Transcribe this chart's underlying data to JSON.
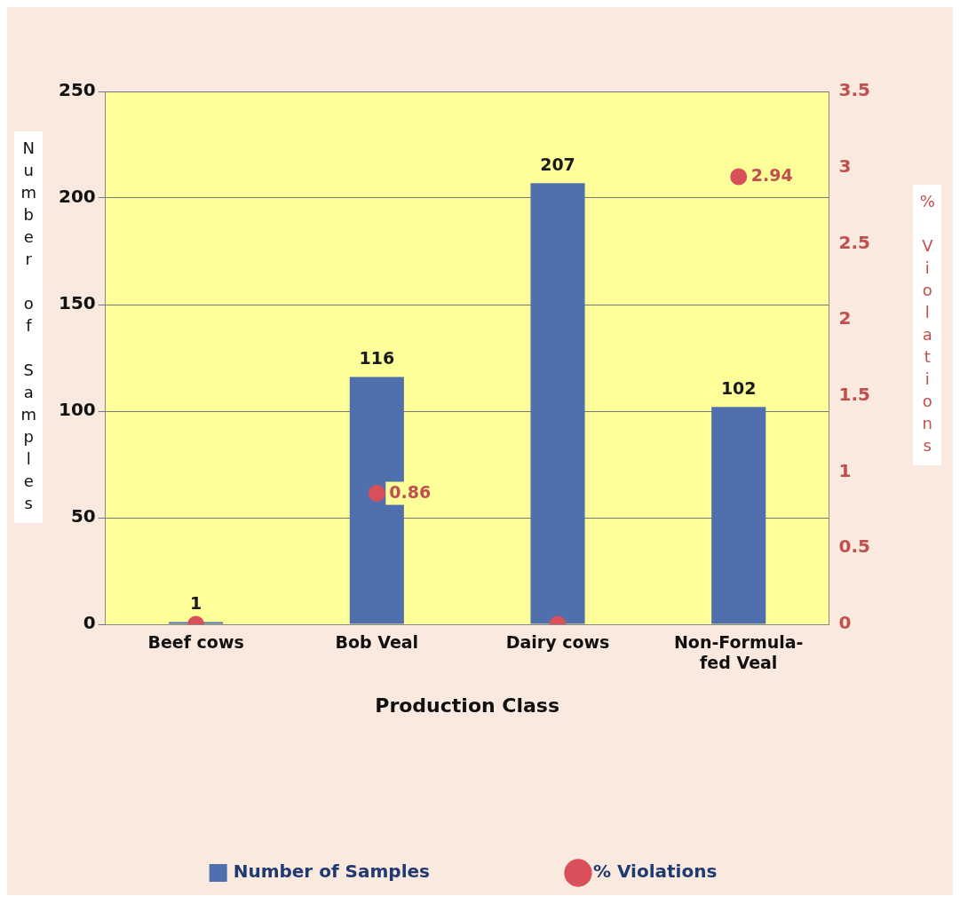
{
  "chart_data": {
    "type": "bar",
    "xlabel": "Production Class",
    "ylabel": "Number of Samples",
    "y2label": "% Violations",
    "categories": [
      "Beef cows",
      "Bob Veal",
      "Dairy cows",
      "Non-Formula-fed Veal"
    ],
    "series": [
      {
        "name": "Number of Samples",
        "color": "#4f6fad",
        "values": [
          1,
          116,
          207,
          102
        ],
        "value_labels": [
          "1",
          "116",
          "207",
          "102"
        ]
      },
      {
        "name": "% Violations",
        "type": "scatter",
        "axis": "y2",
        "color": "#d9505a",
        "x": [
          "Beef cows",
          "Bob Veal",
          "Dairy cows",
          "Non-Formula-fed Veal"
        ],
        "values": [
          0,
          0.86,
          0,
          2.94
        ],
        "value_labels": [
          null,
          "0.86",
          null,
          "2.94"
        ]
      }
    ],
    "ylim": [
      0,
      250
    ],
    "yticks": [
      0,
      50,
      100,
      150,
      200,
      250
    ],
    "y2lim": [
      0,
      3.5
    ],
    "y2ticks": [
      0,
      0.5,
      1,
      1.5,
      2,
      2.5,
      3,
      3.5
    ],
    "grid": "y",
    "legend": "bottom",
    "marker": "circle"
  }
}
